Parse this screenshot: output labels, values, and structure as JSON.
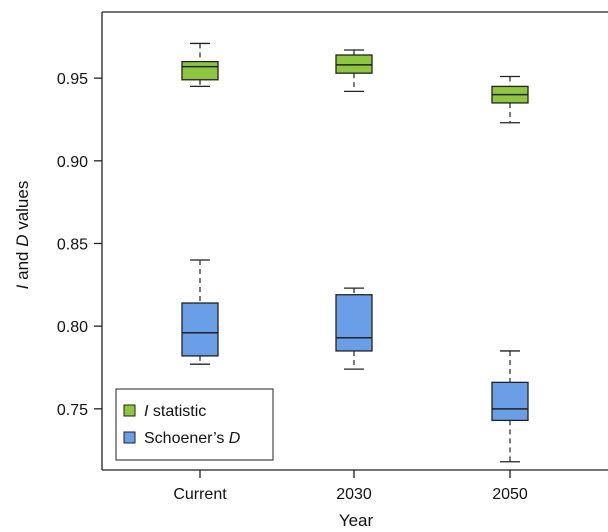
{
  "chart_data": {
    "type": "box",
    "xlabel": "Year",
    "ylabel": "I and D values",
    "ylabel_parts": {
      "i": "I",
      "and": " and ",
      "d": "D",
      "values": " values"
    },
    "categories": [
      "Current",
      "2030",
      "2050"
    ],
    "ylim": [
      0.713,
      0.99
    ],
    "yticks": [
      0.75,
      0.8,
      0.85,
      0.9,
      0.95
    ],
    "ytick_labels": [
      "0.75",
      "0.80",
      "0.85",
      "0.90",
      "0.95"
    ],
    "legend_position": "bottom-left",
    "series": [
      {
        "name": "I statistic",
        "legend_parts": {
          "italic": "I",
          "rest": " statistic"
        },
        "color": "#8dc63f",
        "boxes": [
          {
            "category": "Current",
            "min": 0.945,
            "q1": 0.949,
            "median": 0.957,
            "q3": 0.96,
            "max": 0.971
          },
          {
            "category": "2030",
            "min": 0.942,
            "q1": 0.953,
            "median": 0.958,
            "q3": 0.964,
            "max": 0.967
          },
          {
            "category": "2050",
            "min": 0.923,
            "q1": 0.935,
            "median": 0.94,
            "q3": 0.945,
            "max": 0.951
          }
        ]
      },
      {
        "name": "Schoener’s D",
        "legend_parts": {
          "rest": "Schoener’s ",
          "italic": "D"
        },
        "color": "#6a9fe8",
        "boxes": [
          {
            "category": "Current",
            "min": 0.777,
            "q1": 0.782,
            "median": 0.796,
            "q3": 0.814,
            "max": 0.84
          },
          {
            "category": "2030",
            "min": 0.774,
            "q1": 0.785,
            "median": 0.793,
            "q3": 0.819,
            "max": 0.823
          },
          {
            "category": "2050",
            "min": 0.718,
            "q1": 0.743,
            "median": 0.75,
            "q3": 0.766,
            "max": 0.785
          }
        ]
      }
    ]
  }
}
